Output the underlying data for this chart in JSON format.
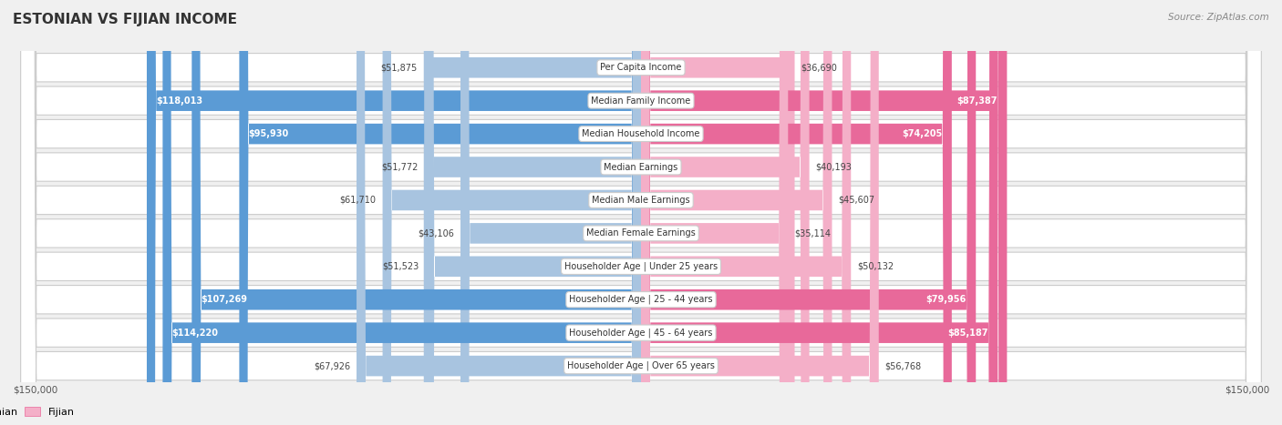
{
  "title": "ESTONIAN VS FIJIAN INCOME",
  "source": "Source: ZipAtlas.com",
  "categories": [
    "Per Capita Income",
    "Median Family Income",
    "Median Household Income",
    "Median Earnings",
    "Median Male Earnings",
    "Median Female Earnings",
    "Householder Age | Under 25 years",
    "Householder Age | 25 - 44 years",
    "Householder Age | 45 - 64 years",
    "Householder Age | Over 65 years"
  ],
  "estonian_values": [
    51875,
    118013,
    95930,
    51772,
    61710,
    43106,
    51523,
    107269,
    114220,
    67926
  ],
  "fijian_values": [
    36690,
    87387,
    74205,
    40193,
    45607,
    35114,
    50132,
    79956,
    85187,
    56768
  ],
  "estonian_labels": [
    "$51,875",
    "$118,013",
    "$95,930",
    "$51,772",
    "$61,710",
    "$43,106",
    "$51,523",
    "$107,269",
    "$114,220",
    "$67,926"
  ],
  "fijian_labels": [
    "$36,690",
    "$87,387",
    "$74,205",
    "$40,193",
    "$45,607",
    "$35,114",
    "$50,132",
    "$79,956",
    "$85,187",
    "$56,768"
  ],
  "estonian_color_light": "#a8c4e0",
  "estonian_color_dark": "#5b9bd5",
  "fijian_color_light": "#f4afc8",
  "fijian_color_dark": "#e8699a",
  "max_value": 150000,
  "background_color": "#f0f0f0",
  "row_bg_color": "#e8e8e8",
  "legend_estonian": "Estonian",
  "legend_fijian": "Fijian",
  "xlabel_left": "$150,000",
  "xlabel_right": "$150,000",
  "threshold": 70000
}
